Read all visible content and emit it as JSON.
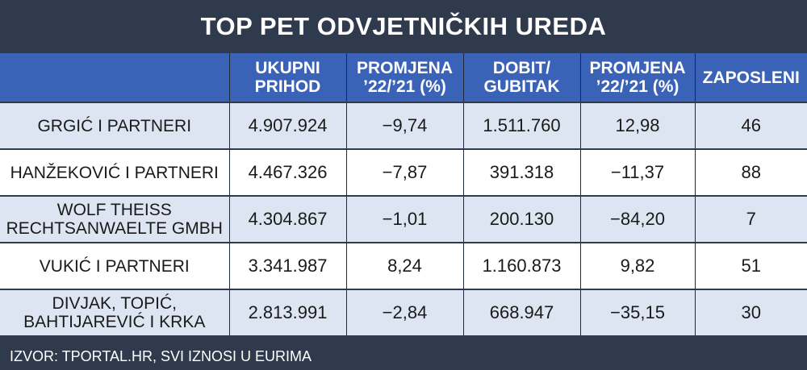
{
  "title": "TOP PET ODVJETNIČKIH UREDA",
  "chart_data": {
    "type": "table",
    "title": "TOP PET ODVJETNIČKIH UREDA",
    "columns": [
      "",
      "UKUPNI PRIHOD",
      "PROMJENA ’22/’21 (%)",
      "DOBIT/ GUBITAK",
      "PROMJENA ’22/’21 (%)",
      "ZAPOSLENI"
    ],
    "rows": [
      [
        "GRGIĆ I PARTNERI",
        "4.907.924",
        "−9,74",
        "1.511.760",
        "12,98",
        "46"
      ],
      [
        "HANŽEKOVIĆ I PARTNERI",
        "4.467.326",
        "−7,87",
        "391.318",
        "−11,37",
        "88"
      ],
      [
        "WOLF THEISS RECHTSANWAELTE GMBH",
        "4.304.867",
        "−1,01",
        "200.130",
        "−84,20",
        "7"
      ],
      [
        "VUKIĆ I PARTNERI",
        "3.341.987",
        "8,24",
        "1.160.873",
        "9,82",
        "51"
      ],
      [
        "DIVJAK, TOPIĆ, BAHTIJAREVIĆ I KRKA",
        "2.813.991",
        "−2,84",
        "668.947",
        "−35,15",
        "30"
      ]
    ]
  },
  "footer": "IZVOR: TPORTAL.HR, SVI IZNOSI U EURIMA",
  "colors": {
    "background": "#2f3a4d",
    "header": "#3a63b8",
    "row_light": "#dde5f3",
    "row_white": "#ffffff"
  }
}
